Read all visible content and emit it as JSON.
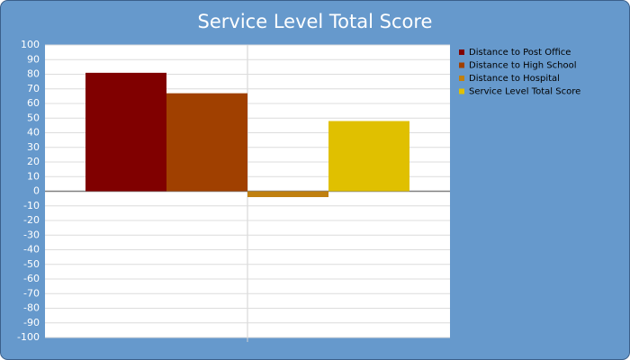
{
  "chart_data": {
    "type": "bar",
    "title": "Service Level Total Score",
    "categories": [
      null
    ],
    "series": [
      {
        "name": "Distance to Post Office",
        "color": "#800000",
        "values": [
          81
        ]
      },
      {
        "name": "Distance to High School",
        "color": "#a04000",
        "values": [
          67
        ]
      },
      {
        "name": "Distance to Hospital",
        "color": "#c08010",
        "values": [
          -4
        ]
      },
      {
        "name": "Service Level Total Score",
        "color": "#e0c000",
        "values": [
          48
        ]
      }
    ],
    "ylim": [
      -100,
      100
    ],
    "yticks": [
      -100,
      -90,
      -80,
      -70,
      -60,
      -50,
      -40,
      -30,
      -20,
      -10,
      0,
      10,
      20,
      30,
      40,
      50,
      60,
      70,
      80,
      90,
      100
    ],
    "grid": true,
    "legend": "right"
  }
}
